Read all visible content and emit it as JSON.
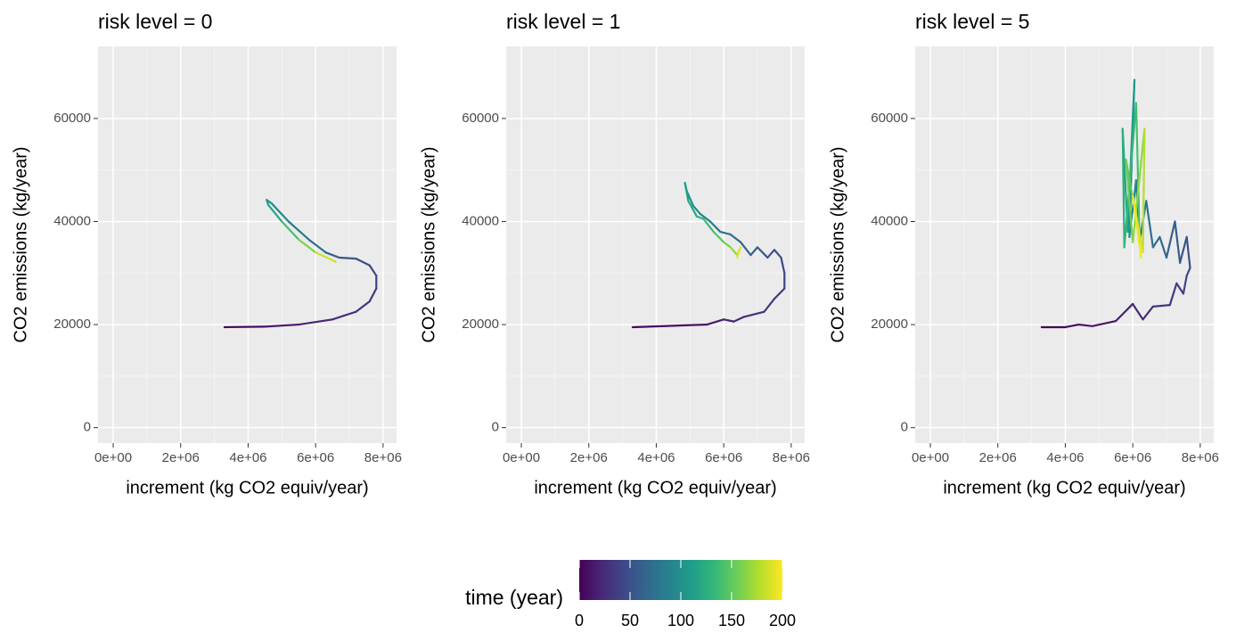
{
  "chart_data": [
    {
      "type": "line",
      "title": "risk level = 0",
      "x_label": "increment (kg CO2 equiv/year)",
      "y_label": "CO2 emissions (kg/year)",
      "xlim": [
        -450000,
        8400000
      ],
      "ylim": [
        -3000,
        74000
      ],
      "xticks": [
        {
          "value": 0,
          "label": "0e+00"
        },
        {
          "value": 2000000,
          "label": "2e+06"
        },
        {
          "value": 4000000,
          "label": "4e+06"
        },
        {
          "value": 6000000,
          "label": "6e+06"
        },
        {
          "value": 8000000,
          "label": "8e+06"
        }
      ],
      "yticks": [
        0,
        20000,
        40000,
        60000
      ],
      "grid": true,
      "x": [
        3300000,
        4500000,
        5500000,
        6500000,
        7200000,
        7600000,
        7800000,
        7800000,
        7600000,
        7200000,
        6700000,
        6300000,
        5800000,
        5200000,
        4700000,
        4550000,
        4600000,
        5000000,
        5500000,
        6000000,
        6600000
      ],
      "values": [
        19500,
        19600,
        20000,
        21000,
        22500,
        24500,
        27000,
        29500,
        31500,
        32800,
        33000,
        34000,
        36500,
        40000,
        43500,
        44200,
        43200,
        40000,
        36500,
        34000,
        32200
      ],
      "time": [
        0,
        10,
        18,
        24,
        28,
        32,
        36,
        40,
        45,
        50,
        58,
        66,
        76,
        86,
        96,
        104,
        112,
        130,
        150,
        170,
        200
      ]
    },
    {
      "type": "line",
      "title": "risk level = 1",
      "x_label": "increment (kg CO2 equiv/year)",
      "y_label": "CO2 emissions (kg/year)",
      "xlim": [
        -450000,
        8400000
      ],
      "ylim": [
        -3000,
        74000
      ],
      "xticks": [
        {
          "value": 0,
          "label": "0e+00"
        },
        {
          "value": 2000000,
          "label": "2e+06"
        },
        {
          "value": 4000000,
          "label": "4e+06"
        },
        {
          "value": 6000000,
          "label": "6e+06"
        },
        {
          "value": 8000000,
          "label": "8e+06"
        }
      ],
      "yticks": [
        0,
        20000,
        40000,
        60000
      ],
      "grid": true,
      "x": [
        3300000,
        5500000,
        6000000,
        6300000,
        6600000,
        7200000,
        7500000,
        7800000,
        7800000,
        7700000,
        7500000,
        7300000,
        7000000,
        6800000,
        6500000,
        6200000,
        5900000,
        5600000,
        5300000,
        5100000,
        4900000,
        4850000,
        4950000,
        5200000,
        5400000,
        5700000,
        6000000,
        6200000,
        6400000,
        6500000,
        6400000
      ],
      "values": [
        19500,
        20000,
        21000,
        20600,
        21500,
        22500,
        25000,
        27000,
        30000,
        33000,
        34500,
        33000,
        35000,
        33500,
        36000,
        37500,
        38000,
        40000,
        41500,
        43000,
        46000,
        47500,
        44000,
        41000,
        40500,
        38000,
        36000,
        35000,
        33500,
        35000,
        33000
      ],
      "time": [
        0,
        12,
        18,
        22,
        26,
        30,
        34,
        38,
        42,
        46,
        50,
        54,
        58,
        62,
        66,
        72,
        78,
        84,
        90,
        96,
        102,
        108,
        116,
        124,
        132,
        142,
        152,
        162,
        174,
        186,
        200
      ]
    },
    {
      "type": "line",
      "title": "risk level = 5",
      "x_label": "increment (kg CO2 equiv/year)",
      "y_label": "CO2 emissions (kg/year)",
      "xlim": [
        -450000,
        8400000
      ],
      "ylim": [
        -3000,
        74000
      ],
      "xticks": [
        {
          "value": 0,
          "label": "0e+00"
        },
        {
          "value": 2000000,
          "label": "2e+06"
        },
        {
          "value": 4000000,
          "label": "4e+06"
        },
        {
          "value": 6000000,
          "label": "6e+06"
        },
        {
          "value": 8000000,
          "label": "8e+06"
        }
      ],
      "yticks": [
        0,
        20000,
        40000,
        60000
      ],
      "grid": true,
      "x": [
        3300000,
        4000000,
        4400000,
        4800000,
        5500000,
        6000000,
        6300000,
        6600000,
        7100000,
        7300000,
        7500000,
        7600000,
        7700000,
        7600000,
        7400000,
        7250000,
        7000000,
        6800000,
        6600000,
        6400000,
        6200000,
        6100000,
        5900000,
        6050000,
        5850000,
        5700000,
        5750000,
        6100000,
        6200000,
        5800000,
        6000000,
        6350000,
        6300000,
        6000000,
        6250000
      ],
      "values": [
        19500,
        19500,
        20000,
        19700,
        20700,
        24000,
        21000,
        23500,
        23800,
        28000,
        26000,
        29500,
        31000,
        37000,
        32000,
        40000,
        33000,
        37000,
        35000,
        44000,
        36000,
        48000,
        37000,
        67500,
        38000,
        58000,
        35000,
        63000,
        37000,
        52000,
        36000,
        58000,
        34000,
        45000,
        33000
      ],
      "time": [
        0,
        4,
        8,
        12,
        16,
        20,
        24,
        28,
        32,
        36,
        40,
        44,
        48,
        52,
        56,
        60,
        64,
        68,
        72,
        78,
        84,
        90,
        96,
        104,
        112,
        120,
        128,
        136,
        144,
        152,
        160,
        172,
        184,
        192,
        200
      ]
    }
  ],
  "legend": {
    "title": "time (year)",
    "lim": [
      0,
      200
    ],
    "ticks": [
      0,
      50,
      100,
      150,
      200
    ],
    "colors": [
      "#440154",
      "#482878",
      "#3e4989",
      "#31688e",
      "#26828e",
      "#1f9e89",
      "#35b779",
      "#6ece58",
      "#b5de2b",
      "#fde725"
    ]
  }
}
